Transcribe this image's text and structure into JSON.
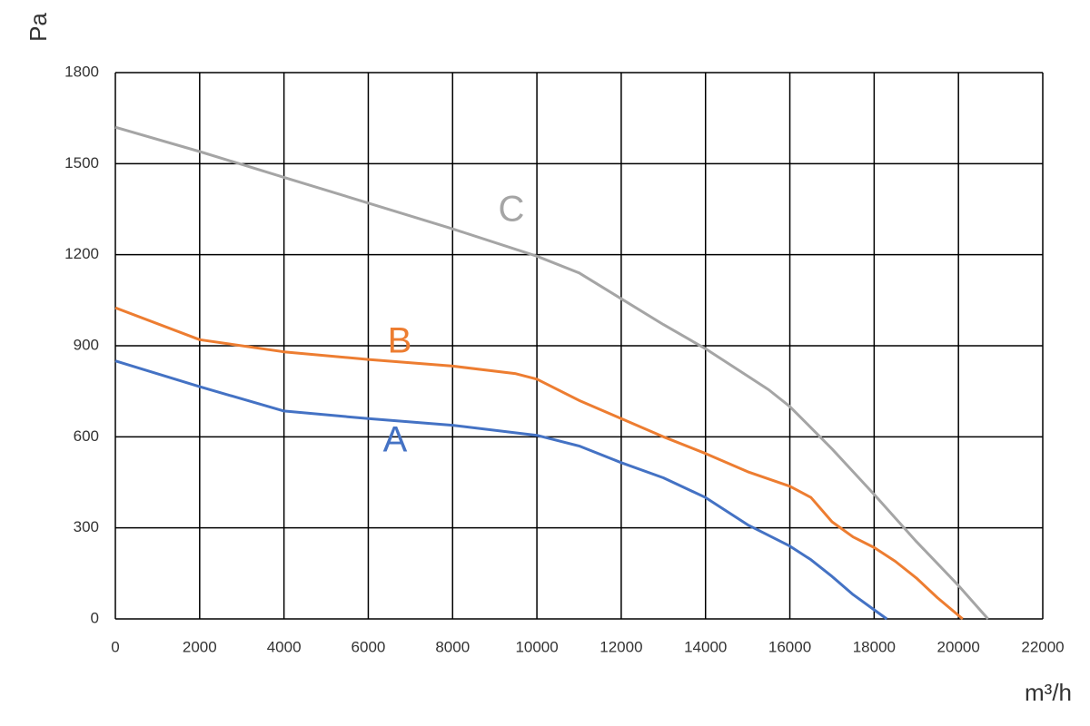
{
  "chart_data": {
    "type": "line",
    "x_label": "m³/h",
    "y_label": "Pa",
    "xlim": [
      0,
      22000
    ],
    "xticks": [
      0,
      2000,
      4000,
      6000,
      8000,
      10000,
      12000,
      14000,
      16000,
      18000,
      20000,
      22000
    ],
    "ylim": [
      0,
      1800
    ],
    "yticks": [
      0,
      300,
      600,
      900,
      1200,
      1500,
      1800
    ],
    "grid": true,
    "series": [
      {
        "name": "A",
        "color": "#4472c4",
        "x": [
          0,
          2000,
          4000,
          6000,
          8000,
          10000,
          11000,
          12000,
          13000,
          14000,
          15000,
          16000,
          16500,
          17000,
          17500,
          18000,
          18300
        ],
        "values": [
          850,
          765,
          685,
          660,
          638,
          605,
          570,
          515,
          465,
          400,
          310,
          240,
          195,
          140,
          80,
          30,
          0
        ]
      },
      {
        "name": "B",
        "color": "#ed7d31",
        "x": [
          0,
          2000,
          4000,
          6000,
          8000,
          9500,
          10000,
          11000,
          12000,
          13000,
          14000,
          15000,
          16000,
          16500,
          17000,
          17500,
          18000,
          18500,
          19000,
          19500,
          20100
        ],
        "values": [
          1025,
          920,
          880,
          855,
          833,
          808,
          790,
          720,
          660,
          600,
          545,
          485,
          437,
          400,
          320,
          270,
          235,
          190,
          135,
          70,
          0
        ]
      },
      {
        "name": "C",
        "color": "#a5a5a5",
        "x": [
          0,
          2000,
          4000,
          6000,
          8000,
          10000,
          11000,
          12000,
          13000,
          14000,
          15000,
          15500,
          16000,
          17000,
          18000,
          19000,
          20000,
          20700
        ],
        "values": [
          1620,
          1540,
          1455,
          1370,
          1285,
          1195,
          1140,
          1055,
          970,
          890,
          800,
          755,
          700,
          560,
          410,
          255,
          110,
          0
        ]
      }
    ]
  }
}
